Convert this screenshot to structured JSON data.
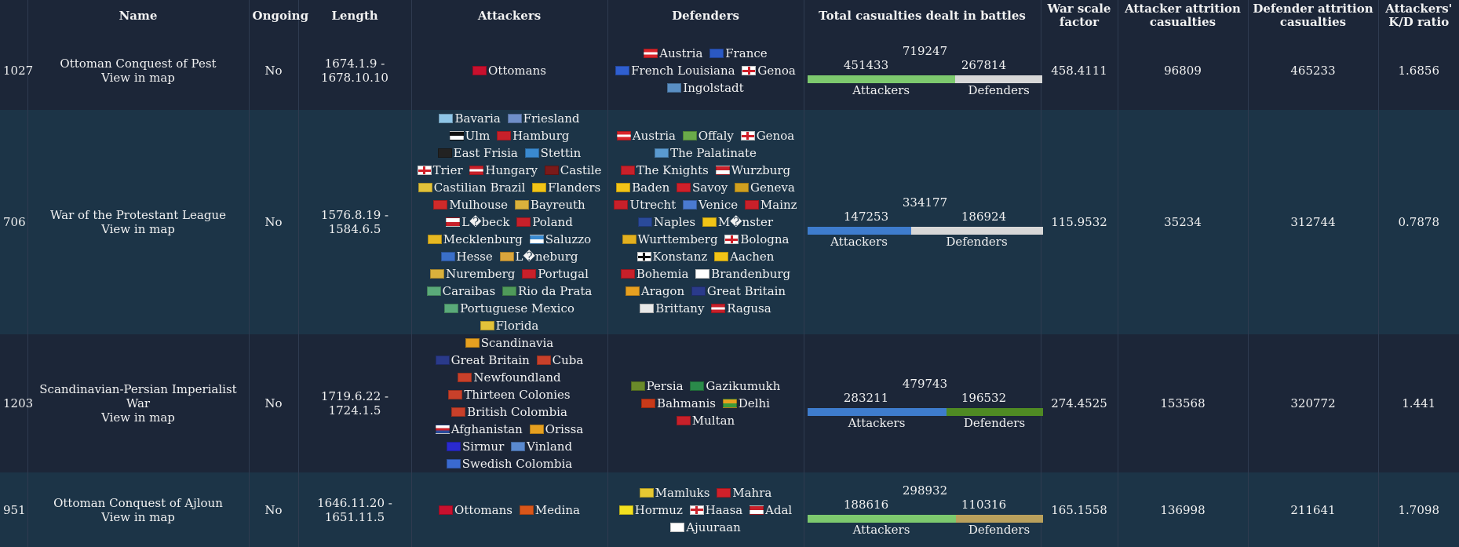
{
  "headers": {
    "id": "",
    "name": "Name",
    "ongoing": "Ongoing",
    "length": "Length",
    "attackers": "Attackers",
    "defenders": "Defenders",
    "total_casualties": "Total casualties dealt in battles",
    "war_scale": "War scale factor",
    "attacker_attrition": "Attacker attrition casualties",
    "defender_attrition": "Defender attrition casualties",
    "kd_ratio": "Attackers' K/D ratio"
  },
  "colors": {
    "row_odd": "#1c2638",
    "row_even": "#1c3447",
    "bar_green": "#7dc96e",
    "bar_gray": "#d7d7d7",
    "bar_blue": "#3e7ccd",
    "bar_darkgreen": "#4f8a23",
    "bar_tan": "#b9a05c"
  },
  "wars": [
    {
      "id": "1027",
      "name": "Ottoman Conquest of Pest",
      "map_link": "View in map",
      "ongoing": "No",
      "length": "1674.1.9 - 1678.10.10",
      "attackers": [
        {
          "name": "Ottomans",
          "flag": "#c8102e"
        }
      ],
      "defenders": [
        {
          "name": "Austria",
          "flag": "#d9242b|#ffffff|#d9242b"
        },
        {
          "name": "France",
          "flag": "#2b59c3"
        },
        {
          "name": "French Louisiana",
          "flag": "#2f5fd0"
        },
        {
          "name": "Genoa",
          "flag": "#ffffff+#d0202a"
        },
        {
          "name": "Ingolstadt",
          "flag": "#5a8fc4"
        }
      ],
      "casualties": {
        "total": "719247",
        "attackers": "451433",
        "defenders": "267814",
        "attacker_fraction": 0.628
      },
      "bar_colors": [
        "#7dc96e",
        "#d7d7d7"
      ],
      "bar_label_attackers": "Attackers",
      "bar_label_defenders": "Defenders",
      "war_scale": "458.4111",
      "attacker_attrition": "96809",
      "defender_attrition": "465233",
      "kd_ratio": "1.6856"
    },
    {
      "id": "706",
      "name": "War of the Protestant League",
      "map_link": "View in map",
      "ongoing": "No",
      "length": "1576.8.19 - 1584.6.5",
      "attackers": [
        {
          "name": "Bavaria",
          "flag": "#8ec6e8"
        },
        {
          "name": "Friesland",
          "flag": "#6f8fc8"
        },
        {
          "name": "Ulm",
          "flag": "#111111|#ffffff"
        },
        {
          "name": "Hamburg",
          "flag": "#c8202a"
        },
        {
          "name": "East Frisia",
          "flag": "#222222"
        },
        {
          "name": "Stettin",
          "flag": "#3a8ad0"
        },
        {
          "name": "Trier",
          "flag": "#ffffff+#d0202a"
        },
        {
          "name": "Hungary",
          "flag": "#c8202a|#ffffff|#c8202a"
        },
        {
          "name": "Castile",
          "flag": "#7a1a1a"
        },
        {
          "name": "Castilian Brazil",
          "flag": "#e2c23a"
        },
        {
          "name": "Flanders",
          "flag": "#f2c417"
        },
        {
          "name": "Mulhouse",
          "flag": "#d02a2a"
        },
        {
          "name": "Bayreuth",
          "flag": "#d9b13c"
        },
        {
          "name": "L�beck",
          "flag": "#ffffff|#c8202a"
        },
        {
          "name": "Poland",
          "flag": "#c8202a"
        },
        {
          "name": "Mecklenburg",
          "flag": "#e6b822"
        },
        {
          "name": "Saluzzo",
          "flag": "#3a8ad0|#ffffff"
        },
        {
          "name": "Hesse",
          "flag": "#3a6fc8"
        },
        {
          "name": "L�neburg",
          "flag": "#d9a53c"
        },
        {
          "name": "Nuremberg",
          "flag": "#d9b13c"
        },
        {
          "name": "Portugal",
          "flag": "#c8202a"
        },
        {
          "name": "Caraibas",
          "flag": "#5aaa7a"
        },
        {
          "name": "Rio da Prata",
          "flag": "#4f9a5a"
        },
        {
          "name": "Portuguese Mexico",
          "flag": "#5aaa7a"
        },
        {
          "name": "Florida",
          "flag": "#e2c23a"
        }
      ],
      "defenders": [
        {
          "name": "Austria",
          "flag": "#d9242b|#ffffff|#d9242b"
        },
        {
          "name": "Offaly",
          "flag": "#6aaa4a"
        },
        {
          "name": "Genoa",
          "flag": "#ffffff+#d0202a"
        },
        {
          "name": "The Palatinate",
          "flag": "#5a9ad0"
        },
        {
          "name": "The Knights",
          "flag": "#c8202a"
        },
        {
          "name": "Wurzburg",
          "flag": "#c8202a|#ffffff"
        },
        {
          "name": "Baden",
          "flag": "#f2c417"
        },
        {
          "name": "Savoy",
          "flag": "#d0202a"
        },
        {
          "name": "Geneva",
          "flag": "#d0a020"
        },
        {
          "name": "Utrecht",
          "flag": "#c8202a"
        },
        {
          "name": "Venice",
          "flag": "#4a7ad0"
        },
        {
          "name": "Mainz",
          "flag": "#c8202a"
        },
        {
          "name": "Naples",
          "flag": "#2a4a9a"
        },
        {
          "name": "M�nster",
          "flag": "#f2c417"
        },
        {
          "name": "Wurttemberg",
          "flag": "#e2b020"
        },
        {
          "name": "Bologna",
          "flag": "#ffffff+#d0202a"
        },
        {
          "name": "Konstanz",
          "flag": "#ffffff+#111111"
        },
        {
          "name": "Aachen",
          "flag": "#f2c417"
        },
        {
          "name": "Bohemia",
          "flag": "#c8202a"
        },
        {
          "name": "Brandenburg",
          "flag": "#ffffff"
        },
        {
          "name": "Aragon",
          "flag": "#e6a020"
        },
        {
          "name": "Great Britain",
          "flag": "#2a3a8a"
        },
        {
          "name": "Brittany",
          "flag": "#e8e8e8"
        },
        {
          "name": "Ragusa",
          "flag": "#c8202a|#ffffff|#c8202a"
        }
      ],
      "casualties": {
        "total": "334177",
        "attackers": "147253",
        "defenders": "186924",
        "attacker_fraction": 0.44
      },
      "bar_colors": [
        "#3e7ccd",
        "#d7d7d7"
      ],
      "bar_label_attackers": "Attackers",
      "bar_label_defenders": "Defenders",
      "war_scale": "115.9532",
      "attacker_attrition": "35234",
      "defender_attrition": "312744",
      "kd_ratio": "0.7878"
    },
    {
      "id": "1203",
      "name": "Scandinavian-Persian Imperialist War",
      "map_link": "View in map",
      "ongoing": "No",
      "length": "1719.6.22 - 1724.1.5",
      "attackers": [
        {
          "name": "Scandinavia",
          "flag": "#e6a020"
        },
        {
          "name": "Great Britain",
          "flag": "#2a3a8a"
        },
        {
          "name": "Cuba",
          "flag": "#c8402a"
        },
        {
          "name": "Newfoundland",
          "flag": "#c8402a"
        },
        {
          "name": "Thirteen Colonies",
          "flag": "#c8402a"
        },
        {
          "name": "British Colombia",
          "flag": "#c8402a"
        },
        {
          "name": "Afghanistan",
          "flag": "#ffffff|#c8202a|#2a4a9a"
        },
        {
          "name": "Orissa",
          "flag": "#e6a020"
        },
        {
          "name": "Sirmur",
          "flag": "#2a2ad0"
        },
        {
          "name": "Vinland",
          "flag": "#5a8ad0"
        },
        {
          "name": "Swedish Colombia",
          "flag": "#3a6ad0"
        }
      ],
      "defenders": [
        {
          "name": "Persia",
          "flag": "#6a8a2a"
        },
        {
          "name": "Gazikumukh",
          "flag": "#2a8a4a"
        },
        {
          "name": "Bahmanis",
          "flag": "#c83a1a"
        },
        {
          "name": "Delhi",
          "flag": "#e6a020|#3a9a3a"
        },
        {
          "name": "Multan",
          "flag": "#c8202a"
        }
      ],
      "casualties": {
        "total": "479743",
        "attackers": "283211",
        "defenders": "196532",
        "attacker_fraction": 0.59
      },
      "bar_colors": [
        "#3e7ccd",
        "#4f8a23"
      ],
      "bar_label_attackers": "Attackers",
      "bar_label_defenders": "Defenders",
      "war_scale": "274.4525",
      "attacker_attrition": "153568",
      "defender_attrition": "320772",
      "kd_ratio": "1.441"
    },
    {
      "id": "951",
      "name": "Ottoman Conquest of Ajloun",
      "map_link": "View in map",
      "ongoing": "No",
      "length": "1646.11.20 - 1651.11.5",
      "attackers": [
        {
          "name": "Ottomans",
          "flag": "#c8102e"
        },
        {
          "name": "Medina",
          "flag": "#d9561a"
        }
      ],
      "defenders": [
        {
          "name": "Mamluks",
          "flag": "#e6c832"
        },
        {
          "name": "Mahra",
          "flag": "#d0202a"
        },
        {
          "name": "Hormuz",
          "flag": "#f2e020"
        },
        {
          "name": "Haasa",
          "flag": "#ffffff+#c8202a"
        },
        {
          "name": "Adal",
          "flag": "#c8202a|#ffffff"
        },
        {
          "name": "Ajuuraan",
          "flag": "#ffffff"
        }
      ],
      "casualties": {
        "total": "298932",
        "attackers": "188616",
        "defenders": "110316",
        "attacker_fraction": 0.63
      },
      "bar_colors": [
        "#7dc96e",
        "#b9a05c"
      ],
      "bar_label_attackers": "Attackers",
      "bar_label_defenders": "Defenders",
      "war_scale": "165.1558",
      "attacker_attrition": "136998",
      "defender_attrition": "211641",
      "kd_ratio": "1.7098"
    }
  ]
}
